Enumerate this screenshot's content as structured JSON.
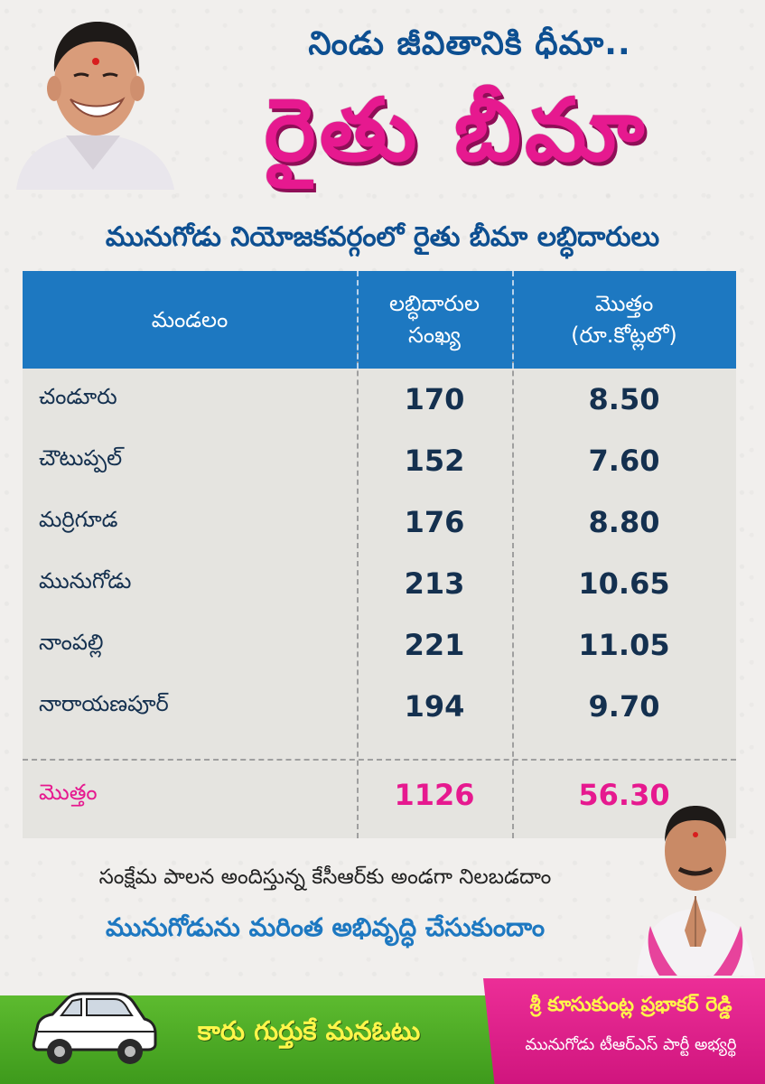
{
  "header": {
    "subtitle": "నిండు జీవితానికి ధీమా..",
    "title": "రైతు బీమా"
  },
  "table": {
    "heading": "మునుగోడు నియోజకవర్గంలో రైతు బీమా లబ్ధిదారులు",
    "columns": [
      "మండలం",
      "లబ్ధిదారుల\nసంఖ్య",
      "మొత్తం\n(రూ.కోట్లలో)"
    ],
    "rows": [
      {
        "mandal": "చండూరు",
        "count": "170",
        "amount": "8.50"
      },
      {
        "mandal": "చౌటుప్పల్",
        "count": "152",
        "amount": "7.60"
      },
      {
        "mandal": "మర్రిగూడ",
        "count": "176",
        "amount": "8.80"
      },
      {
        "mandal": "మునుగోడు",
        "count": "213",
        "amount": "10.65"
      },
      {
        "mandal": "నాంపల్లి",
        "count": "221",
        "amount": "11.05"
      },
      {
        "mandal": "నారాయణపూర్",
        "count": "194",
        "amount": "9.70"
      }
    ],
    "total": {
      "label": "మొత్తం",
      "count": "1126",
      "amount": "56.30"
    }
  },
  "slogans": {
    "line1": "సంక్షేమ పాలన అందిస్తున్న కేసీఆర్‌కు అండగా నిలబడదాం",
    "line2": "మునుగోడును మరింత అభివృద్ధి చేసుకుందాం"
  },
  "footer": {
    "car_slogan": "కారు గుర్తుకే మనఓటు",
    "candidate_name": "శ్రీ కూసుకుంట్ల ప్రభాకర్ రెడ్డి",
    "candidate_role": "మునుగోడు టీఆర్ఎస్ పార్టీ అభ్యర్థి"
  },
  "colors": {
    "title_pink": "#e6198f",
    "heading_blue": "#0d4f91",
    "table_header_blue": "#1d78c1",
    "footer_green": "#4aa824",
    "footer_pink": "#e0208a"
  },
  "icons": [
    "leader-portrait",
    "candidate-portrait",
    "car-symbol-icon"
  ]
}
